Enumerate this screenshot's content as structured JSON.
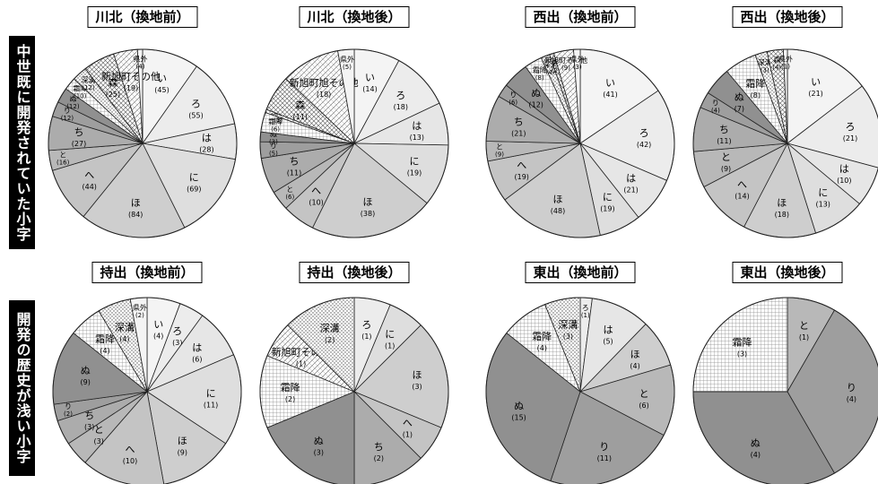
{
  "row_labels": [
    "中世既に開発されていた小字",
    "開発の歴史が浅い小字"
  ],
  "fills": {
    "い": "#f4f4f4",
    "ろ": "#ececec",
    "は": "#e6e6e6",
    "に": "#dedede",
    "ほ": "#cecece",
    "へ": "#c4c4c4",
    "と": "#b8b8b8",
    "ち": "#acacac",
    "り": "#9e9e9e",
    "ぬ": "#909090",
    "霜降": "pattern:grid",
    "深溝": "pattern:dots",
    "森": "pattern:cross",
    "新旭町その他": "pattern:hatch",
    "新旭町旭その他": "pattern:hatch",
    "県外": "#f4f4f4"
  },
  "chart_data": [
    {
      "type": "pie",
      "title": "川北（換地前）",
      "labels": [
        "い",
        "ろ",
        "は",
        "に",
        "ほ",
        "へ",
        "と",
        "ち",
        "り",
        "ぬ",
        "霜降",
        "深溝",
        "森",
        "新旭町その他",
        "県外"
      ],
      "values": [
        45,
        55,
        28,
        69,
        84,
        44,
        16,
        27,
        12,
        12,
        10,
        12,
        25,
        19,
        4
      ]
    },
    {
      "type": "pie",
      "title": "川北（換地後）",
      "labels": [
        "い",
        "ろ",
        "は",
        "に",
        "ほ",
        "へ",
        "と",
        "ち",
        "り",
        "ぬ",
        "霜降",
        "深溝",
        "森",
        "新旭町旭その他",
        "県外"
      ],
      "values": [
        14,
        18,
        13,
        19,
        38,
        10,
        6,
        11,
        5,
        3,
        6,
        1,
        11,
        18,
        5
      ]
    },
    {
      "type": "pie",
      "title": "西出（換地前）",
      "labels": [
        "い",
        "ろ",
        "は",
        "に",
        "ほ",
        "へ",
        "と",
        "ち",
        "り",
        "ぬ",
        "霜降",
        "深溝",
        "森",
        "新旭町その他",
        "県外"
      ],
      "values": [
        41,
        42,
        21,
        19,
        48,
        19,
        9,
        21,
        6,
        12,
        8,
        4,
        2,
        9,
        3
      ]
    },
    {
      "type": "pie",
      "title": "西出（換地後）",
      "labels": [
        "い",
        "ろ",
        "は",
        "に",
        "ほ",
        "へ",
        "と",
        "ち",
        "り",
        "ぬ",
        "霜降",
        "深溝",
        "森",
        "県外"
      ],
      "values": [
        21,
        21,
        10,
        13,
        18,
        14,
        9,
        11,
        4,
        7,
        8,
        3,
        4,
        1
      ]
    },
    {
      "type": "pie",
      "title": "持出（換地前）",
      "labels": [
        "い",
        "ろ",
        "は",
        "に",
        "ほ",
        "へ",
        "と",
        "ち",
        "り",
        "ぬ",
        "霜降",
        "深溝",
        "県外"
      ],
      "values": [
        4,
        3,
        6,
        11,
        9,
        10,
        3,
        3,
        2,
        9,
        4,
        4,
        2
      ]
    },
    {
      "type": "pie",
      "title": "持出（換地後）",
      "labels": [
        "ろ",
        "に",
        "ほ",
        "へ",
        "ち",
        "ぬ",
        "霜降",
        "新旭町その他",
        "深溝"
      ],
      "values": [
        1,
        1,
        3,
        1,
        2,
        3,
        2,
        1,
        2
      ]
    },
    {
      "type": "pie",
      "title": "東出（換地前）",
      "labels": [
        "ろ",
        "は",
        "ほ",
        "と",
        "り",
        "ぬ",
        "霜降",
        "深溝"
      ],
      "values": [
        1,
        5,
        4,
        6,
        11,
        15,
        4,
        3
      ]
    },
    {
      "type": "pie",
      "title": "東出（換地後）",
      "labels": [
        "と",
        "り",
        "ぬ",
        "霜降"
      ],
      "values": [
        1,
        4,
        4,
        3
      ]
    }
  ]
}
